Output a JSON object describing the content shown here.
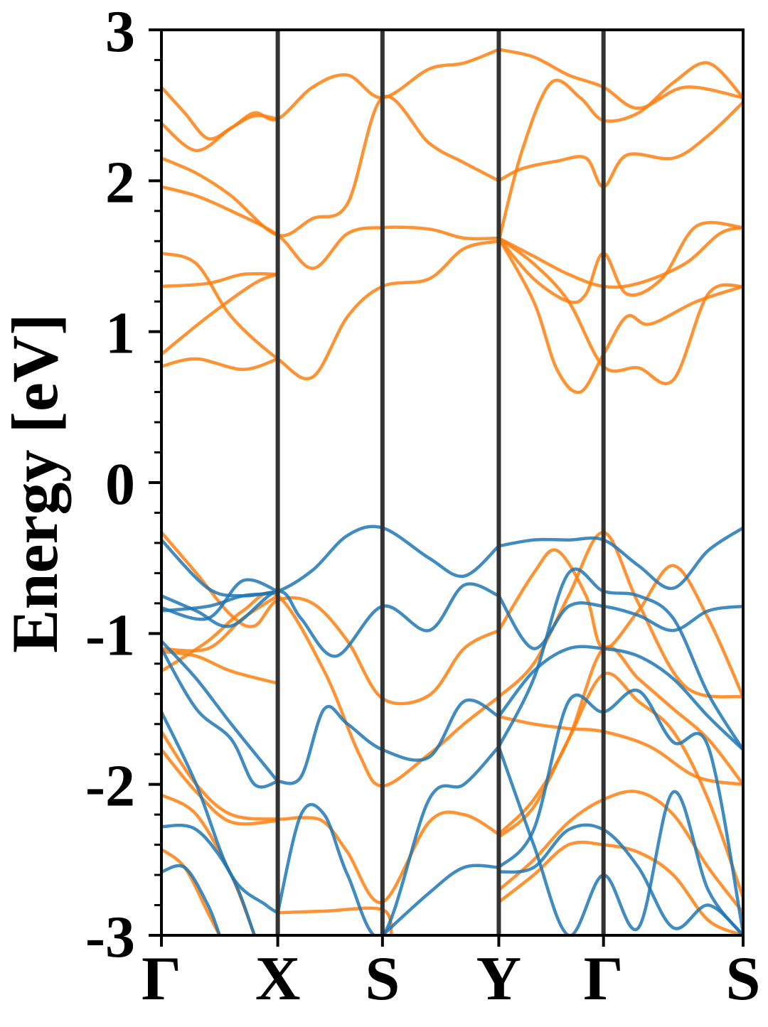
{
  "chart_data": {
    "type": "line",
    "ylabel": "Energy [eV]",
    "xlabel": "",
    "ylim": [
      -3,
      3
    ],
    "y_ticks": [
      "3",
      "2",
      "1",
      "0",
      "-1",
      "-2",
      "-3"
    ],
    "y_tick_values": [
      3,
      2,
      1,
      0,
      -1,
      -2,
      -3
    ],
    "k_path_labels": [
      "Γ",
      "X",
      "S",
      "Y",
      "Γ",
      "S"
    ],
    "k_path_positions": [
      0,
      1,
      1.9,
      2.9,
      3.8,
      5.0
    ],
    "grid": false,
    "legend": "none",
    "colors": {
      "spin_a": "#ff7f0e",
      "spin_b": "#1f77b4",
      "frame": "#000000",
      "k_lines": "#333333"
    },
    "series": [
      {
        "color": "spin_a",
        "x": [
          0,
          0.2,
          0.4,
          0.6,
          0.8,
          1.0,
          1.3,
          1.6,
          1.9,
          2.3,
          2.6,
          2.9
        ],
        "y": [
          2.62,
          2.45,
          2.28,
          2.35,
          2.45,
          2.41,
          2.62,
          2.7,
          2.55,
          2.74,
          2.78,
          2.87
        ]
      },
      {
        "color": "spin_a",
        "x": [
          0,
          0.3,
          0.6,
          0.8,
          1.0
        ],
        "y": [
          2.38,
          2.2,
          2.35,
          2.43,
          2.41
        ]
      },
      {
        "color": "spin_a",
        "x": [
          0,
          0.3,
          0.6,
          1.0,
          1.3,
          1.6,
          1.9,
          2.3,
          2.6,
          2.9
        ],
        "y": [
          2.15,
          2.05,
          1.9,
          1.64,
          1.75,
          1.85,
          2.55,
          2.25,
          2.12,
          2.0
        ]
      },
      {
        "color": "spin_a",
        "x": [
          0,
          0.3,
          0.6,
          1.0,
          1.3,
          1.6,
          1.9,
          2.3,
          2.6,
          2.9
        ],
        "y": [
          1.96,
          1.9,
          1.8,
          1.64,
          1.42,
          1.65,
          1.69,
          1.68,
          1.62,
          1.62
        ]
      },
      {
        "color": "spin_a",
        "x": [
          0,
          0.3,
          0.6,
          1.0,
          1.3,
          1.6,
          1.9,
          2.3,
          2.6,
          2.9
        ],
        "y": [
          1.52,
          1.45,
          1.1,
          0.82,
          0.7,
          1.1,
          1.3,
          1.35,
          1.55,
          1.6
        ]
      },
      {
        "color": "spin_a",
        "x": [
          0,
          0.4,
          0.7,
          1.0
        ],
        "y": [
          1.3,
          1.32,
          1.38,
          1.38
        ]
      },
      {
        "color": "spin_a",
        "x": [
          0,
          0.4,
          0.8,
          1.0
        ],
        "y": [
          0.85,
          1.1,
          1.32,
          1.38
        ]
      },
      {
        "color": "spin_a",
        "x": [
          0,
          0.3,
          0.7,
          1.0
        ],
        "y": [
          0.77,
          0.82,
          0.75,
          0.82
        ]
      },
      {
        "color": "spin_a",
        "x": [
          2.9,
          3.1,
          3.35,
          3.6,
          3.8,
          4.1,
          4.4,
          4.7,
          5.0
        ],
        "y": [
          1.6,
          2.2,
          2.65,
          2.55,
          2.4,
          2.45,
          2.65,
          2.78,
          2.55
        ]
      },
      {
        "color": "spin_a",
        "x": [
          2.9,
          3.2,
          3.5,
          3.8,
          4.1,
          4.5,
          5.0
        ],
        "y": [
          2.87,
          2.82,
          2.7,
          2.62,
          2.48,
          2.62,
          2.55
        ]
      },
      {
        "color": "spin_a",
        "x": [
          2.9,
          3.1,
          3.4,
          3.65,
          3.8,
          4.0,
          4.4,
          4.7,
          5.0
        ],
        "y": [
          2.0,
          2.08,
          2.13,
          2.15,
          1.96,
          2.17,
          2.15,
          2.3,
          2.52
        ]
      },
      {
        "color": "spin_a",
        "x": [
          2.9,
          3.2,
          3.5,
          3.8,
          4.1,
          4.5,
          4.8,
          5.0
        ],
        "y": [
          1.62,
          1.5,
          1.38,
          1.3,
          1.32,
          1.45,
          1.65,
          1.69
        ]
      },
      {
        "color": "spin_a",
        "x": [
          2.9,
          3.2,
          3.4,
          3.6,
          3.8,
          4.0,
          4.2,
          4.6,
          5.0
        ],
        "y": [
          1.62,
          1.2,
          0.75,
          0.6,
          0.85,
          1.1,
          1.05,
          1.2,
          1.3
        ]
      },
      {
        "color": "spin_a",
        "x": [
          2.9,
          3.2,
          3.5,
          3.65,
          3.8,
          4.0,
          4.3,
          4.6,
          5.0
        ],
        "y": [
          1.62,
          1.35,
          1.2,
          1.25,
          1.52,
          1.25,
          1.35,
          1.7,
          1.69
        ]
      },
      {
        "color": "spin_a",
        "x": [
          2.9,
          3.2,
          3.5,
          3.8,
          4.1,
          4.4,
          4.7,
          5.0
        ],
        "y": [
          1.62,
          1.45,
          1.2,
          0.77,
          0.76,
          0.68,
          1.25,
          1.3
        ]
      },
      {
        "color": "spin_a",
        "x": [
          0,
          0.3,
          0.6,
          0.8,
          1.0,
          1.3,
          1.6,
          1.9,
          2.3,
          2.6,
          2.9
        ],
        "y": [
          -0.33,
          -0.6,
          -0.88,
          -0.95,
          -0.78,
          -0.8,
          -1.05,
          -1.43,
          -1.41,
          -1.1,
          -0.98
        ]
      },
      {
        "color": "spin_a",
        "x": [
          0,
          0.4,
          0.7,
          1.0
        ],
        "y": [
          -1.1,
          -1.1,
          -0.9,
          -0.75
        ]
      },
      {
        "color": "spin_a",
        "x": [
          0,
          0.4,
          0.7,
          1.0,
          1.4,
          1.7,
          1.9,
          2.3,
          2.6,
          2.9
        ],
        "y": [
          -1.25,
          -1.05,
          -0.85,
          -0.75,
          -1.25,
          -1.8,
          -2.01,
          -1.8,
          -1.6,
          -1.42
        ]
      },
      {
        "color": "spin_a",
        "x": [
          0,
          0.3,
          0.6,
          1.0
        ],
        "y": [
          -1.12,
          -1.15,
          -1.25,
          -1.33
        ]
      },
      {
        "color": "spin_a",
        "x": [
          0,
          0.3,
          0.6,
          1.0,
          1.2,
          1.4,
          1.6,
          1.9,
          2.3,
          2.6,
          2.9
        ],
        "y": [
          -1.65,
          -2.0,
          -2.2,
          -2.23,
          -2.22,
          -2.25,
          -2.45,
          -2.78,
          -2.25,
          -2.2,
          -2.33
        ]
      },
      {
        "color": "spin_a",
        "x": [
          0,
          0.3,
          0.6,
          1.0
        ],
        "y": [
          -1.77,
          -2.05,
          -2.25,
          -2.24
        ]
      },
      {
        "color": "spin_a",
        "x": [
          0,
          0.3,
          0.6,
          0.8
        ],
        "y": [
          -2.07,
          -2.2,
          -2.6,
          -3.0
        ]
      },
      {
        "color": "spin_a",
        "x": [
          0,
          0.2,
          0.4,
          0.5
        ],
        "y": [
          -2.43,
          -2.55,
          -2.85,
          -3.0
        ]
      },
      {
        "color": "spin_a",
        "x": [
          1.0,
          1.4,
          1.9,
          1.98
        ],
        "y": [
          -2.85,
          -2.84,
          -2.83,
          -3.0
        ]
      },
      {
        "color": "spin_a",
        "x": [
          2.9,
          3.2,
          3.4,
          3.65,
          3.8,
          4.1,
          4.4,
          4.7,
          5.0
        ],
        "y": [
          -0.98,
          -0.6,
          -0.45,
          -0.75,
          -1.1,
          -0.85,
          -0.55,
          -0.9,
          -1.42
        ]
      },
      {
        "color": "spin_a",
        "x": [
          2.9,
          3.2,
          3.5,
          3.8,
          4.1,
          4.5,
          5.0
        ],
        "y": [
          -1.42,
          -1.2,
          -0.75,
          -0.33,
          -0.8,
          -1.35,
          -1.42
        ]
      },
      {
        "color": "spin_a",
        "x": [
          2.9,
          3.2,
          3.5,
          3.8,
          4.2,
          4.6,
          5.0
        ],
        "y": [
          -1.55,
          -1.6,
          -1.63,
          -1.65,
          -1.75,
          -1.95,
          -2.0
        ]
      },
      {
        "color": "spin_a",
        "x": [
          2.9,
          3.2,
          3.5,
          3.8,
          4.1,
          4.4,
          4.7,
          5.0
        ],
        "y": [
          -2.33,
          -2.1,
          -1.7,
          -1.1,
          -1.3,
          -1.5,
          -1.7,
          -2.0
        ]
      },
      {
        "color": "spin_a",
        "x": [
          2.9,
          3.2,
          3.5,
          3.8,
          4.1,
          4.4,
          4.7,
          5.0
        ],
        "y": [
          -2.35,
          -2.15,
          -1.7,
          -1.27,
          -1.45,
          -1.65,
          -2.1,
          -2.75
        ]
      },
      {
        "color": "spin_a",
        "x": [
          2.9,
          3.2,
          3.5,
          3.8,
          4.1,
          4.4,
          4.7,
          5.0
        ],
        "y": [
          -2.7,
          -2.5,
          -2.25,
          -2.1,
          -2.05,
          -2.2,
          -2.55,
          -2.85
        ]
      },
      {
        "color": "spin_a",
        "x": [
          2.9,
          3.2,
          3.5,
          3.8,
          4.1,
          4.4,
          4.7,
          5.0
        ],
        "y": [
          -2.78,
          -2.6,
          -2.4,
          -2.4,
          -2.45,
          -2.6,
          -2.9,
          -3.0
        ]
      },
      {
        "color": "spin_b",
        "x": [
          0,
          0.4,
          0.7,
          1.0,
          1.3,
          1.6,
          1.9,
          2.3,
          2.6,
          2.9
        ],
        "y": [
          -0.85,
          -0.82,
          -0.75,
          -0.72,
          -0.58,
          -0.35,
          -0.3,
          -0.5,
          -0.62,
          -0.42
        ]
      },
      {
        "color": "spin_b",
        "x": [
          0,
          0.4,
          0.7,
          1.0
        ],
        "y": [
          -0.38,
          -0.7,
          -0.75,
          -0.72
        ]
      },
      {
        "color": "spin_b",
        "x": [
          0,
          0.3,
          0.6,
          1.0,
          1.2,
          1.5,
          1.9,
          2.3,
          2.6,
          2.9
        ],
        "y": [
          -0.75,
          -0.85,
          -0.95,
          -0.72,
          -0.9,
          -1.15,
          -0.82,
          -0.98,
          -0.68,
          -0.75
        ]
      },
      {
        "color": "spin_b",
        "x": [
          0,
          0.4,
          0.7,
          1.0
        ],
        "y": [
          -0.83,
          -0.9,
          -0.65,
          -0.72
        ]
      },
      {
        "color": "spin_b",
        "x": [
          0,
          0.3,
          0.6,
          1.0
        ],
        "y": [
          -1.05,
          -1.3,
          -1.6,
          -1.98
        ]
      },
      {
        "color": "spin_b",
        "x": [
          0,
          0.3,
          0.6,
          0.8,
          1.0
        ],
        "y": [
          -1.1,
          -1.5,
          -1.7,
          -2.0,
          -1.98
        ]
      },
      {
        "color": "spin_b",
        "x": [
          1.0,
          1.2,
          1.4,
          1.6,
          1.9,
          2.3,
          2.6,
          2.9
        ],
        "y": [
          -1.98,
          -1.95,
          -1.5,
          -1.6,
          -1.77,
          -1.82,
          -1.45,
          -1.55
        ]
      },
      {
        "color": "spin_b",
        "x": [
          0,
          0.3,
          0.6,
          0.9,
          1.0
        ],
        "y": [
          -1.52,
          -2.0,
          -2.6,
          -2.8,
          -2.85
        ]
      },
      {
        "color": "spin_b",
        "x": [
          0,
          0.3,
          0.6,
          0.8
        ],
        "y": [
          -2.28,
          -2.3,
          -2.6,
          -3.0
        ]
      },
      {
        "color": "spin_b",
        "x": [
          0,
          0.2,
          0.4,
          0.5
        ],
        "y": [
          -2.58,
          -2.55,
          -2.8,
          -3.0
        ]
      },
      {
        "color": "spin_b",
        "x": [
          1.0,
          1.2,
          1.4,
          1.6,
          1.9,
          2.3,
          2.6,
          2.9
        ],
        "y": [
          -2.85,
          -2.2,
          -2.2,
          -2.6,
          -3.0,
          -2.1,
          -2.0,
          -1.75
        ]
      },
      {
        "color": "spin_b",
        "x": [
          1.9,
          2.3,
          2.6,
          2.9
        ],
        "y": [
          -3.0,
          -2.72,
          -2.55,
          -2.55
        ]
      },
      {
        "color": "spin_b",
        "x": [
          2.9,
          3.2,
          3.5,
          3.8,
          4.1,
          4.4,
          4.7,
          5.0
        ],
        "y": [
          -0.42,
          -0.38,
          -0.38,
          -0.38,
          -0.55,
          -0.7,
          -0.45,
          -0.3
        ]
      },
      {
        "color": "spin_b",
        "x": [
          2.9,
          3.2,
          3.5,
          3.8,
          4.1,
          4.4,
          4.7,
          5.0
        ],
        "y": [
          -0.75,
          -1.1,
          -0.82,
          -0.82,
          -0.88,
          -0.98,
          -0.85,
          -0.82
        ]
      },
      {
        "color": "spin_b",
        "x": [
          2.9,
          3.2,
          3.5,
          3.8,
          4.1,
          4.4,
          4.7,
          5.0
        ],
        "y": [
          -1.55,
          -1.25,
          -1.1,
          -1.1,
          -1.15,
          -1.3,
          -1.55,
          -1.77
        ]
      },
      {
        "color": "spin_b",
        "x": [
          2.9,
          3.2,
          3.5,
          3.8,
          4.1,
          4.4,
          4.7,
          5.0
        ],
        "y": [
          -1.75,
          -1.3,
          -0.6,
          -0.72,
          -0.75,
          -0.9,
          -1.4,
          -1.77
        ]
      },
      {
        "color": "spin_b",
        "x": [
          2.9,
          3.2,
          3.5,
          3.8,
          4.1,
          4.4,
          4.7,
          5.0
        ],
        "y": [
          -2.55,
          -2.3,
          -1.45,
          -1.52,
          -1.38,
          -1.72,
          -1.75,
          -2.98
        ]
      },
      {
        "color": "spin_b",
        "x": [
          2.9,
          3.2,
          3.5,
          3.8,
          4.1,
          4.4,
          4.7,
          5.0
        ],
        "y": [
          -1.75,
          -2.4,
          -3.0,
          -2.6,
          -2.95,
          -2.05,
          -2.7,
          -3.0
        ]
      },
      {
        "color": "spin_b",
        "x": [
          2.9,
          3.2,
          3.5,
          3.8,
          4.1,
          4.4,
          4.7,
          5.0
        ],
        "y": [
          -2.58,
          -2.55,
          -2.3,
          -2.3,
          -2.55,
          -2.95,
          -2.8,
          -3.0
        ]
      }
    ]
  }
}
